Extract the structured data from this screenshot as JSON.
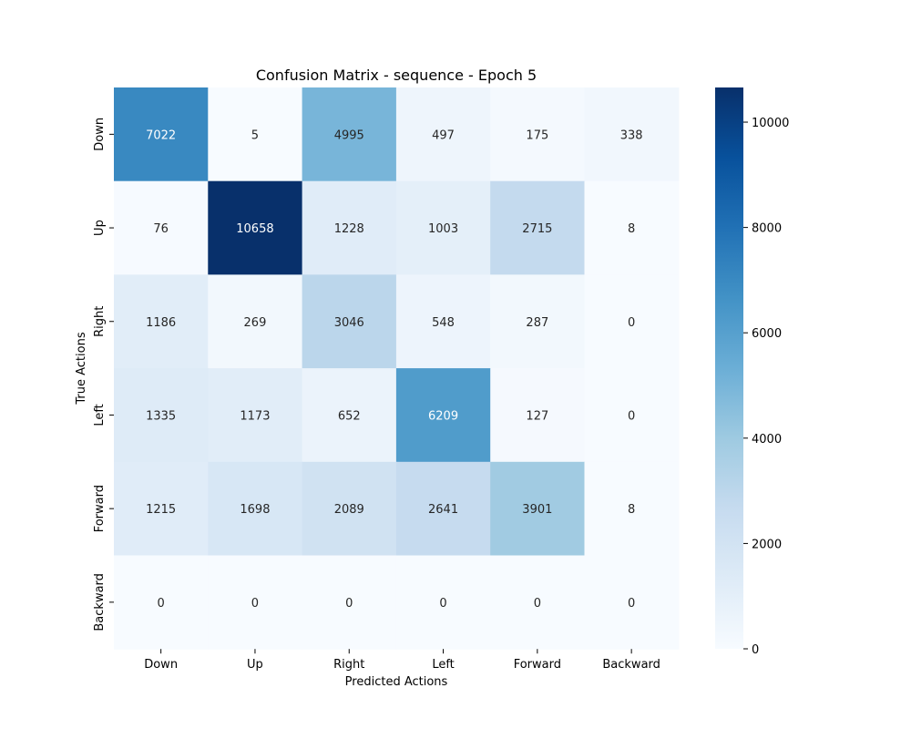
{
  "chart_data": {
    "type": "heatmap",
    "title": "Confusion Matrix - sequence - Epoch 5",
    "xlabel": "Predicted Actions",
    "ylabel": "True Actions",
    "x_categories": [
      "Down",
      "Up",
      "Right",
      "Left",
      "Forward",
      "Backward"
    ],
    "y_categories": [
      "Down",
      "Up",
      "Right",
      "Left",
      "Forward",
      "Backward"
    ],
    "values": [
      [
        7022,
        5,
        4995,
        497,
        175,
        338
      ],
      [
        76,
        10658,
        1228,
        1003,
        2715,
        8
      ],
      [
        1186,
        269,
        3046,
        548,
        287,
        0
      ],
      [
        1335,
        1173,
        652,
        6209,
        127,
        0
      ],
      [
        1215,
        1698,
        2089,
        2641,
        3901,
        8
      ],
      [
        0,
        0,
        0,
        0,
        0,
        0
      ]
    ],
    "colormap": "Blues",
    "value_range": [
      0,
      10658
    ],
    "colorbar_ticks": [
      0,
      2000,
      4000,
      6000,
      8000,
      10000
    ],
    "colorbar_tick_labels": [
      "0",
      "2000",
      "4000",
      "6000",
      "8000",
      "10000"
    ],
    "annotate_cells": true,
    "grid": false,
    "legend": "colorbar-right"
  }
}
